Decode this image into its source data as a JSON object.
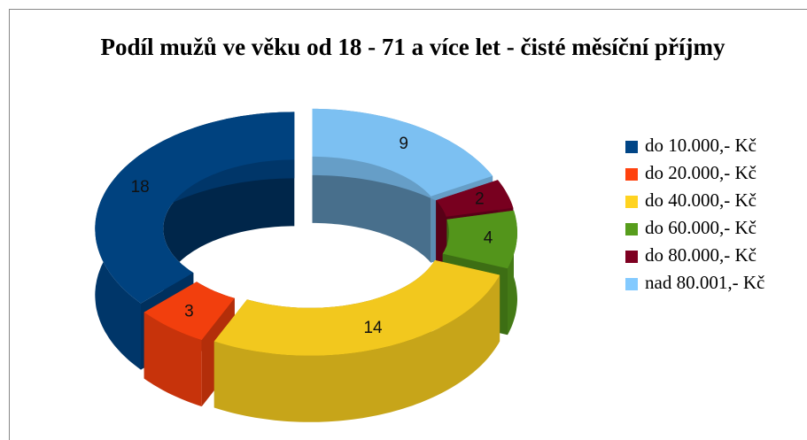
{
  "chart_data": {
    "type": "pie",
    "title": "Podíl mužů ve věku od 18 - 71 a více let - čisté měsíční příjmy",
    "categories": [
      "do 10.000,- Kč",
      "do 20.000,- Kč",
      "do 40.000,- Kč",
      "do 60.000,- Kč",
      "do 80.000,- Kč",
      "nad 80.001,- Kč"
    ],
    "values": [
      18,
      3,
      14,
      4,
      2,
      9
    ],
    "colors": [
      "#004586",
      "#ff420e",
      "#ffd320",
      "#579d1c",
      "#7e0021",
      "#83caff"
    ],
    "legend": "right"
  }
}
